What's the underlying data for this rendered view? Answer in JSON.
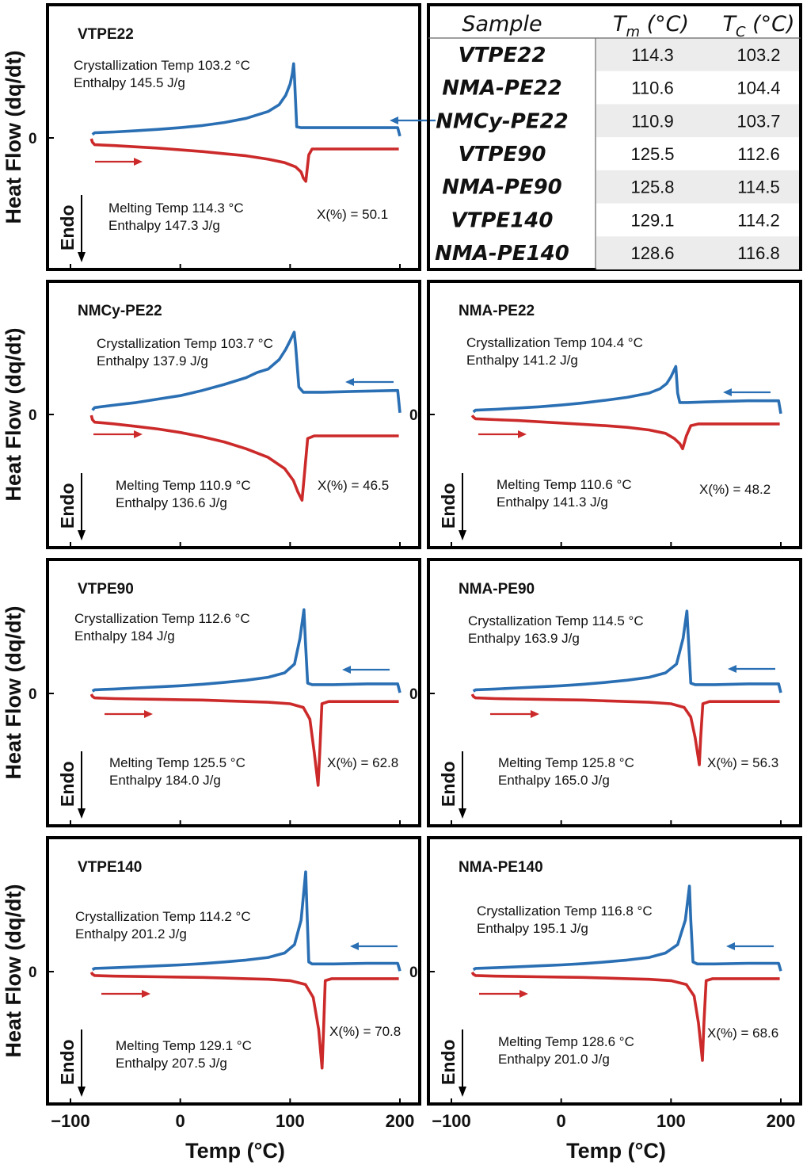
{
  "figure": {
    "ylabel": "Heat Flow (dq/dt)",
    "xlabel": "Temp (°C)",
    "zero_label": "0",
    "endo_label": "Endo",
    "x_ticks": [
      "−100",
      "0",
      "100",
      "200"
    ]
  },
  "table": {
    "headers": {
      "sample": "Sample",
      "tm_main": "T",
      "tm_sub": "m",
      "tm_unit": " (°C)",
      "tc_main": "T",
      "tc_sub": "C",
      "tc_unit": " (°C)"
    },
    "rows": [
      {
        "sample": "VTPE22",
        "tm": "114.3",
        "tc": "103.2"
      },
      {
        "sample": "NMA-PE22",
        "tm": "110.6",
        "tc": "104.4"
      },
      {
        "sample": "NMCy-PE22",
        "tm": "110.9",
        "tc": "103.7"
      },
      {
        "sample": "VTPE90",
        "tm": "125.5",
        "tc": "112.6"
      },
      {
        "sample": "NMA-PE90",
        "tm": "125.8",
        "tc": "114.5"
      },
      {
        "sample": "VTPE140",
        "tm": "129.1",
        "tc": "114.2"
      },
      {
        "sample": "NMA-PE140",
        "tm": "128.6",
        "tc": "116.8"
      }
    ],
    "row_shade": "#ececec"
  },
  "colors": {
    "cooling": "#2a6fb3",
    "heating": "#cc2a2a"
  },
  "chart_data": [
    {
      "type": "line",
      "title": "VTPE22",
      "xlim": [
        -100,
        200
      ],
      "x_ticks": [
        -100,
        0,
        100,
        200
      ],
      "cryst_text": "Crystallization Temp 103.2 °C",
      "cryst_enthalpy": "Enthalpy 145.5 J/g",
      "melt_text": "Melting Temp 114.3  °C",
      "melt_enthalpy": "Enthalpy 147.3 J/g",
      "x_pct": "X(%) = 50.1",
      "series": [
        {
          "name": "cooling",
          "x": [
            -80,
            -78,
            -60,
            -40,
            -20,
            0,
            20,
            40,
            60,
            80,
            90,
            96,
            100,
            102,
            103.2,
            104,
            106,
            110,
            130,
            160,
            198,
            200
          ],
          "y": [
            0.4,
            0.6,
            0.7,
            0.85,
            1.0,
            1.2,
            1.45,
            1.8,
            2.3,
            3.1,
            3.9,
            5.0,
            6.3,
            7.5,
            8.7,
            7.0,
            1.3,
            1.2,
            1.2,
            1.2,
            1.2,
            0.2
          ]
        },
        {
          "name": "heating",
          "x": [
            -81,
            -80,
            -78,
            -60,
            -40,
            -20,
            0,
            20,
            40,
            60,
            80,
            95,
            105,
            110,
            112,
            114.3,
            117,
            120,
            140,
            170,
            199
          ],
          "y": [
            -0.1,
            -0.5,
            -0.8,
            -0.9,
            -1.05,
            -1.2,
            -1.4,
            -1.6,
            -1.85,
            -2.1,
            -2.5,
            -2.9,
            -3.4,
            -4.0,
            -4.7,
            -5.1,
            -2.0,
            -1.3,
            -1.3,
            -1.3,
            -1.3
          ]
        }
      ],
      "ylim": [
        -12,
        12
      ]
    },
    {
      "type": "line",
      "title": "NMCy-PE22",
      "xlim": [
        -100,
        200
      ],
      "x_ticks": [
        -100,
        0,
        100,
        200
      ],
      "cryst_text": "Crystallization Temp 103.7 °C",
      "cryst_enthalpy": "Enthalpy 137.9 J/g",
      "melt_text": "Melting Temp 110.9 °C",
      "melt_enthalpy": "Enthalpy 136.6 J/g",
      "x_pct": "X(%) = 46.5",
      "series": [
        {
          "name": "cooling",
          "x": [
            -80,
            -78,
            -60,
            -40,
            -20,
            0,
            20,
            40,
            60,
            70,
            80,
            90,
            96,
            100,
            103.7,
            105,
            108,
            112,
            130,
            160,
            198,
            200
          ],
          "y": [
            0.5,
            0.8,
            1.1,
            1.4,
            1.8,
            2.2,
            2.8,
            3.5,
            4.3,
            4.9,
            5.3,
            6.4,
            7.6,
            8.6,
            9.6,
            8.0,
            3.2,
            2.6,
            2.6,
            2.7,
            2.8,
            0.2
          ]
        },
        {
          "name": "heating",
          "x": [
            -81,
            -80,
            -78,
            -60,
            -40,
            -20,
            0,
            20,
            40,
            60,
            80,
            95,
            103,
            107,
            110.9,
            113,
            116,
            122,
            140,
            170,
            199
          ],
          "y": [
            -0.1,
            -0.6,
            -0.9,
            -1.1,
            -1.4,
            -1.7,
            -2.1,
            -2.6,
            -3.2,
            -4.0,
            -5.0,
            -6.3,
            -7.7,
            -9.0,
            -10.0,
            -7.0,
            -2.8,
            -2.5,
            -2.5,
            -2.5,
            -2.5
          ]
        }
      ],
      "ylim": [
        -12,
        12
      ]
    },
    {
      "type": "line",
      "title": "NMA-PE22",
      "xlim": [
        -100,
        200
      ],
      "x_ticks": [
        -100,
        0,
        100,
        200
      ],
      "cryst_text": "Crystallization Temp 104.4 °C",
      "cryst_enthalpy": "Enthalpy 141.2 J/g",
      "melt_text": "Melting Temp 110.6 °C",
      "melt_enthalpy": "Enthalpy 141.3 J/g",
      "x_pct": "X(%) = 48.2",
      "series": [
        {
          "name": "cooling",
          "x": [
            -80,
            -78,
            -60,
            -40,
            -20,
            0,
            20,
            40,
            60,
            80,
            90,
            96,
            100,
            104.4,
            106,
            108,
            115,
            140,
            170,
            198,
            200
          ],
          "y": [
            0.3,
            0.5,
            0.6,
            0.75,
            0.9,
            1.1,
            1.35,
            1.65,
            2.0,
            2.5,
            3.0,
            3.6,
            4.4,
            5.6,
            2.5,
            1.4,
            1.4,
            1.5,
            1.6,
            1.6,
            0.1
          ]
        },
        {
          "name": "heating",
          "x": [
            -81,
            -80,
            -78,
            -60,
            -40,
            -20,
            0,
            20,
            40,
            60,
            80,
            95,
            103,
            108,
            110.6,
            114,
            118,
            125,
            150,
            180,
            199
          ],
          "y": [
            -0.1,
            -0.3,
            -0.5,
            -0.6,
            -0.7,
            -0.85,
            -1.0,
            -1.15,
            -1.3,
            -1.5,
            -1.8,
            -2.2,
            -2.8,
            -3.4,
            -4.0,
            -2.5,
            -1.3,
            -1.1,
            -1.1,
            -1.1,
            -1.1
          ]
        }
      ],
      "ylim": [
        -12,
        12
      ]
    },
    {
      "type": "line",
      "title": "VTPE90",
      "xlim": [
        -100,
        200
      ],
      "x_ticks": [
        -100,
        0,
        100,
        200
      ],
      "cryst_text": "Crystallization Temp 112.6 °C",
      "cryst_enthalpy": "Enthalpy 184 J/g",
      "melt_text": "Melting Temp 125.5  °C",
      "melt_enthalpy": "Enthalpy 184.0 J/g",
      "x_pct": "X(%) = 62.8",
      "series": [
        {
          "name": "cooling",
          "x": [
            -80,
            -78,
            -60,
            -40,
            -20,
            0,
            20,
            40,
            60,
            80,
            95,
            104,
            109,
            112.6,
            114,
            116,
            120,
            140,
            170,
            198,
            200
          ],
          "y": [
            0.3,
            0.5,
            0.6,
            0.75,
            0.9,
            1.05,
            1.25,
            1.5,
            1.8,
            2.2,
            2.8,
            4.0,
            7.5,
            11.4,
            7.0,
            1.4,
            1.2,
            1.2,
            1.3,
            1.3,
            0.1
          ]
        },
        {
          "name": "heating",
          "x": [
            -81,
            -80,
            -78,
            -60,
            -40,
            -20,
            0,
            20,
            40,
            60,
            80,
            100,
            112,
            118,
            122,
            125.5,
            127,
            129,
            135,
            160,
            199
          ],
          "y": [
            -0.1,
            -0.4,
            -0.6,
            -0.7,
            -0.75,
            -0.8,
            -0.85,
            -0.9,
            -1.0,
            -1.1,
            -1.2,
            -1.4,
            -1.9,
            -3.5,
            -8.0,
            -12.5,
            -8.0,
            -1.4,
            -1.1,
            -1.1,
            -1.1
          ]
        }
      ],
      "ylim": [
        -14,
        14
      ]
    },
    {
      "type": "line",
      "title": "NMA-PE90",
      "xlim": [
        -100,
        200
      ],
      "x_ticks": [
        -100,
        0,
        100,
        200
      ],
      "cryst_text": "Crystallization Temp 114.5 °C",
      "cryst_enthalpy": "Enthalpy 163.9 J/g",
      "melt_text": "Melting Temp  125.8 °C",
      "melt_enthalpy": "Enthalpy 165.0 J/g",
      "x_pct": "X(%) = 56.3",
      "series": [
        {
          "name": "cooling",
          "x": [
            -80,
            -78,
            -60,
            -40,
            -20,
            0,
            20,
            40,
            60,
            80,
            95,
            105,
            111,
            114.5,
            116,
            118,
            122,
            140,
            170,
            198,
            200
          ],
          "y": [
            0.3,
            0.5,
            0.6,
            0.75,
            0.9,
            1.05,
            1.25,
            1.5,
            1.8,
            2.2,
            2.8,
            4.0,
            7.5,
            11.2,
            7.0,
            1.4,
            1.2,
            1.2,
            1.3,
            1.3,
            0.1
          ]
        },
        {
          "name": "heating",
          "x": [
            -81,
            -80,
            -78,
            -60,
            -40,
            -20,
            0,
            20,
            40,
            60,
            80,
            100,
            112,
            118,
            122,
            125.8,
            127,
            129,
            135,
            160,
            199
          ],
          "y": [
            -0.1,
            -0.4,
            -0.6,
            -0.7,
            -0.75,
            -0.8,
            -0.85,
            -0.9,
            -1.0,
            -1.1,
            -1.2,
            -1.4,
            -1.9,
            -3.2,
            -6.0,
            -9.7,
            -6.0,
            -1.4,
            -1.1,
            -1.1,
            -1.1
          ]
        }
      ],
      "ylim": [
        -14,
        14
      ]
    },
    {
      "type": "line",
      "title": "VTPE140",
      "xlim": [
        -100,
        200
      ],
      "x_ticks": [
        -100,
        0,
        100,
        200
      ],
      "cryst_text": "Crystallization Temp 114.2 °C",
      "cryst_enthalpy": "Enthalpy 201.2 J/g",
      "melt_text": "Melting Temp 129.1 °C",
      "melt_enthalpy": "Enthalpy 207.5 J/g",
      "x_pct": "X(%) = 70.8",
      "series": [
        {
          "name": "cooling",
          "x": [
            -80,
            -78,
            -60,
            -40,
            -20,
            0,
            20,
            40,
            60,
            80,
            95,
            104,
            110,
            114.2,
            115.5,
            117,
            120,
            140,
            170,
            198,
            200
          ],
          "y": [
            0.3,
            0.5,
            0.6,
            0.75,
            0.9,
            1.05,
            1.25,
            1.5,
            1.8,
            2.2,
            2.9,
            4.2,
            8.0,
            15.5,
            9.0,
            1.5,
            1.2,
            1.2,
            1.3,
            1.3,
            0.1
          ]
        },
        {
          "name": "heating",
          "x": [
            -81,
            -80,
            -78,
            -60,
            -40,
            -20,
            0,
            20,
            40,
            60,
            80,
            100,
            114,
            121,
            126,
            129.1,
            130.5,
            132,
            138,
            160,
            199
          ],
          "y": [
            -0.1,
            -0.4,
            -0.6,
            -0.7,
            -0.75,
            -0.8,
            -0.85,
            -0.9,
            -1.0,
            -1.1,
            -1.2,
            -1.4,
            -2.0,
            -4.0,
            -9.0,
            -15.0,
            -9.0,
            -1.4,
            -1.1,
            -1.1,
            -1.1
          ]
        }
      ],
      "ylim": [
        -16,
        16
      ]
    },
    {
      "type": "line",
      "title": "NMA-PE140",
      "xlim": [
        -100,
        200
      ],
      "x_ticks": [
        -100,
        0,
        100,
        200
      ],
      "cryst_text": "Crystallization Temp 116.8 °C",
      "cryst_enthalpy": "Enthalpy 195.1 J/g",
      "melt_text": "Melting Temp 128.6 °C",
      "melt_enthalpy": "Enthalpy 201.0 J/g",
      "x_pct": "X(%) = 68.6",
      "series": [
        {
          "name": "cooling",
          "x": [
            -80,
            -78,
            -60,
            -40,
            -20,
            0,
            20,
            40,
            60,
            80,
            95,
            106,
            113,
            116.8,
            118,
            120,
            124,
            140,
            170,
            198,
            200
          ],
          "y": [
            0.3,
            0.5,
            0.6,
            0.75,
            0.9,
            1.05,
            1.25,
            1.5,
            1.8,
            2.2,
            2.9,
            4.2,
            8.0,
            13.3,
            8.0,
            1.5,
            1.2,
            1.2,
            1.3,
            1.3,
            0.1
          ]
        },
        {
          "name": "heating",
          "x": [
            -81,
            -80,
            -78,
            -60,
            -40,
            -20,
            0,
            20,
            40,
            60,
            80,
            100,
            114,
            121,
            125,
            128.6,
            130,
            132,
            138,
            160,
            199
          ],
          "y": [
            -0.1,
            -0.4,
            -0.6,
            -0.7,
            -0.75,
            -0.8,
            -0.85,
            -0.9,
            -1.0,
            -1.1,
            -1.2,
            -1.4,
            -2.0,
            -3.8,
            -8.0,
            -13.8,
            -8.0,
            -1.4,
            -1.1,
            -1.1,
            -1.1
          ]
        }
      ],
      "ylim": [
        -16,
        16
      ]
    }
  ]
}
